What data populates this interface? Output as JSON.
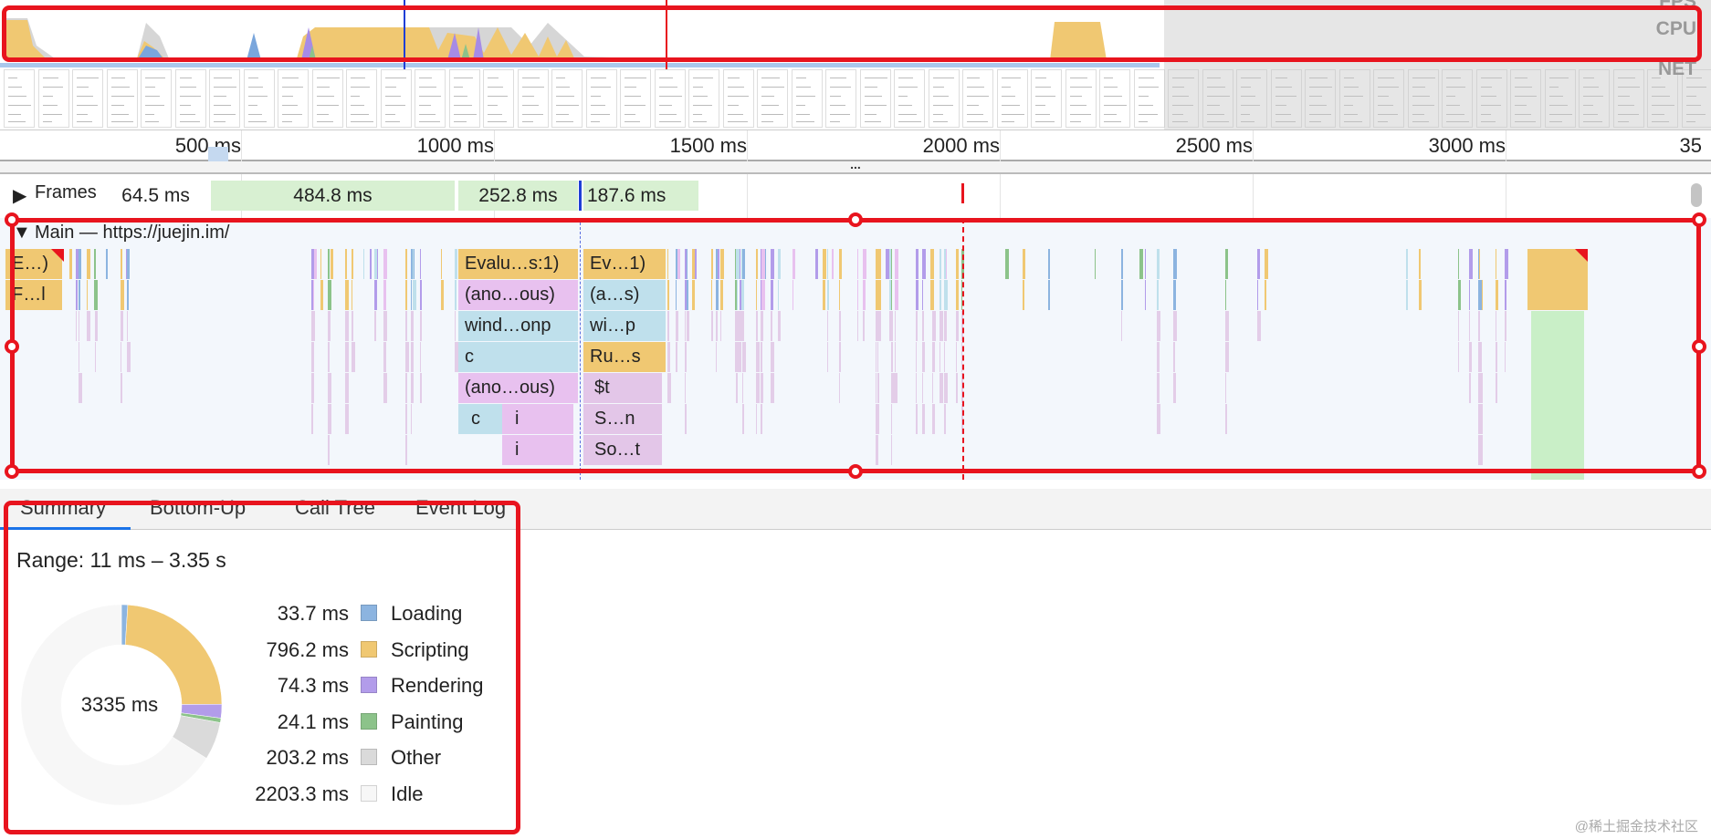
{
  "overview": {
    "cpu_label": "CPU",
    "net_label": "NET",
    "fps_label": "FPS"
  },
  "ruler": {
    "ticks": [
      {
        "label": "500 ms"
      },
      {
        "label": "1000 ms"
      },
      {
        "label": "1500 ms"
      },
      {
        "label": "2000 ms"
      },
      {
        "label": "2500 ms"
      },
      {
        "label": "3000 ms"
      },
      {
        "label": "35"
      }
    ]
  },
  "divider": {
    "label": "..."
  },
  "frames": {
    "label": "Frames",
    "items": [
      "64.5 ms",
      "484.8 ms",
      "252.8 ms",
      "187.6 ms"
    ]
  },
  "main": {
    "title": "Main — https://juejin.im/",
    "blocks": [
      "E…)",
      "F…l",
      "Evalu…s:1)",
      "(ano…ous)",
      "wind…onp",
      "c",
      "(ano…ous)",
      "c",
      "i",
      "i",
      "Ev…1)",
      "(a…s)",
      "wi…p",
      "Ru…s",
      "$t",
      "S…n",
      "So…t"
    ]
  },
  "colors": {
    "loading": "#8cb4e0",
    "scripting": "#f0c872",
    "rendering": "#b29cea",
    "painting": "#8cc38a",
    "other": "#dadada",
    "idle": "#f7f7f7",
    "annotation": "#e8141e",
    "tab_active": "#1a73e8"
  },
  "tabs": [
    {
      "label": "Summary",
      "active": true
    },
    {
      "label": "Bottom-Up"
    },
    {
      "label": "Call Tree"
    },
    {
      "label": "Event Log"
    }
  ],
  "summary": {
    "range": "Range: 11 ms – 3.35 s",
    "total": "3335 ms",
    "items": [
      {
        "value": "33.7 ms",
        "ms": 33.7,
        "label": "Loading",
        "color": "#8cb4e0"
      },
      {
        "value": "796.2 ms",
        "ms": 796.2,
        "label": "Scripting",
        "color": "#f0c872"
      },
      {
        "value": "74.3 ms",
        "ms": 74.3,
        "label": "Rendering",
        "color": "#b29cea"
      },
      {
        "value": "24.1 ms",
        "ms": 24.1,
        "label": "Painting",
        "color": "#8cc38a"
      },
      {
        "value": "203.2 ms",
        "ms": 203.2,
        "label": "Other",
        "color": "#dadada"
      },
      {
        "value": "2203.3 ms",
        "ms": 2203.3,
        "label": "Idle",
        "color": "#f7f7f7"
      }
    ]
  },
  "watermark": "@稀土掘金技术社区"
}
